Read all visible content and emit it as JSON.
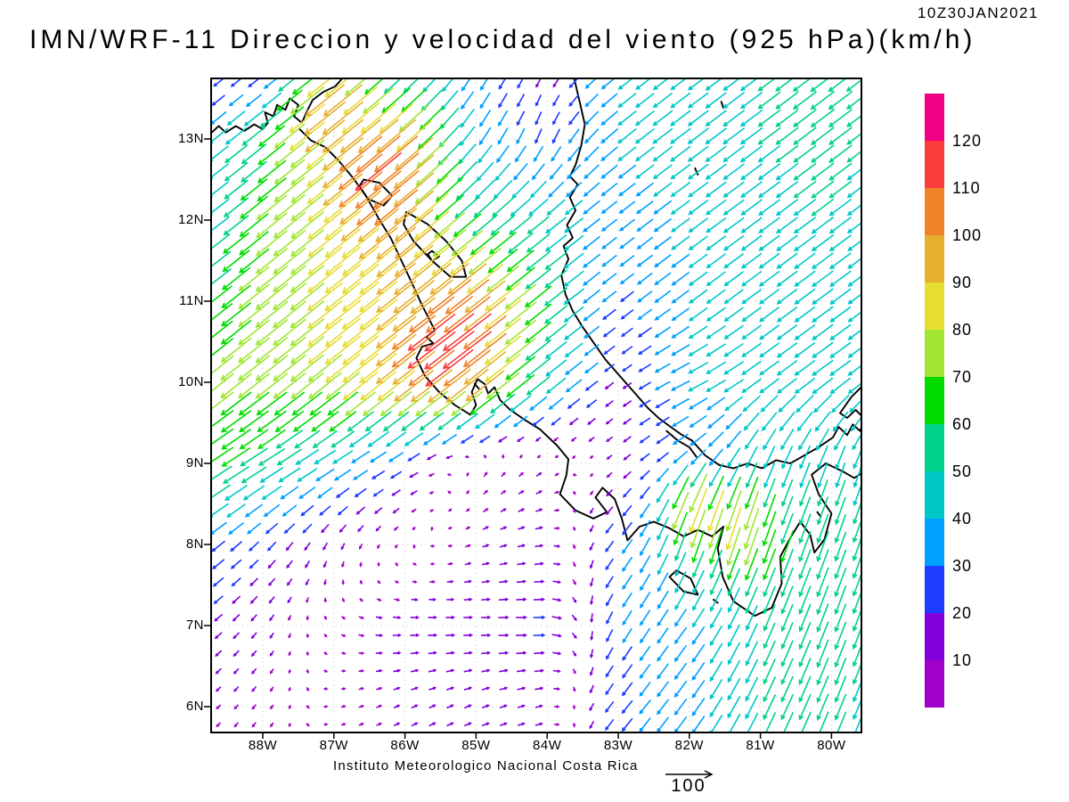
{
  "header": {
    "title": "IMN/WRF-11 Direccion y velocidad del viento (925 hPa)(km/h)",
    "timestamp": "10Z30JAN2021"
  },
  "footer": {
    "credit": "Instituto Meteorologico Nacional Costa Rica",
    "reference_vector_label": "100"
  },
  "axes": {
    "lat_tick_labels": [
      "13N",
      "12N",
      "11N",
      "10N",
      "9N",
      "8N",
      "7N",
      "6N"
    ],
    "lat_tick_values": [
      13,
      12,
      11,
      10,
      9,
      8,
      7,
      6
    ],
    "lon_tick_labels": [
      "88W",
      "87W",
      "86W",
      "85W",
      "84W",
      "83W",
      "82W",
      "81W",
      "80W"
    ],
    "lon_tick_values": [
      -88,
      -87,
      -86,
      -85,
      -84,
      -83,
      -82,
      -81,
      -80
    ]
  },
  "chart_data": {
    "type": "vector_field",
    "title": "IMN/WRF-11 Direccion y velocidad del viento (925 hPa)(km/h)",
    "valid_time": "10Z30JAN2021",
    "units": "km/h",
    "level": "925 hPa",
    "lon_range": [
      -88.73,
      -79.57
    ],
    "lat_range": [
      5.68,
      13.75
    ],
    "grid_on": true,
    "colorbar": {
      "position": "right",
      "labels_top_to_bottom": [
        "120",
        "110",
        "100",
        "90",
        "80",
        "70",
        "60",
        "50",
        "40",
        "30",
        "20",
        "10"
      ],
      "colors_top_to_bottom": [
        "#F00082",
        "#FA3C3C",
        "#F08228",
        "#E6AF2D",
        "#E6DC32",
        "#A0E632",
        "#00DC00",
        "#00D28C",
        "#00C8C8",
        "#00A0FF",
        "#1E3CFF",
        "#8200DC",
        "#A000C8"
      ]
    },
    "reference_vector": {
      "value": 100
    },
    "arrow_spacing_deg": {
      "lon": 0.25,
      "lat": 0.22
    },
    "wind_field_kmh": {
      "lons": [
        -89,
        -88,
        -87,
        -86,
        -85,
        -84,
        -83,
        -82,
        -81,
        -80,
        -79
      ],
      "lats": [
        14,
        13,
        12,
        11,
        10,
        9,
        8,
        7,
        6
      ],
      "u": [
        [
          -8,
          -10,
          -60,
          -30,
          -16,
          -6,
          -30,
          -35,
          -40,
          -45,
          -40
        ],
        [
          -30,
          -45,
          -62,
          -65,
          -22,
          -10,
          -33,
          -37,
          -40,
          -42,
          -38
        ],
        [
          -28,
          -55,
          -62,
          -70,
          -45,
          -38,
          -26,
          -34,
          -38,
          -40,
          -36
        ],
        [
          -45,
          -58,
          -65,
          -72,
          -78,
          -45,
          -22,
          -32,
          -35,
          -38,
          -33
        ],
        [
          -55,
          -58,
          -62,
          -70,
          -75,
          -40,
          -12,
          -36,
          -35,
          -38,
          -35
        ],
        [
          -58,
          -48,
          -35,
          -20,
          4,
          8,
          -10,
          -26,
          -18,
          -16,
          -13
        ],
        [
          -28,
          -16,
          -6,
          -2,
          10,
          14,
          -18,
          -18,
          -22,
          -20,
          -16
        ],
        [
          -15,
          -8,
          5,
          16,
          16,
          22,
          -15,
          -22,
          -20,
          -20,
          -16
        ],
        [
          -7,
          -6,
          6,
          10,
          12,
          12,
          -18,
          -22,
          -22,
          -20,
          -15
        ]
      ],
      "v": [
        [
          -6,
          -8,
          -48,
          -30,
          -28,
          -10,
          -24,
          -26,
          -30,
          -34,
          -30
        ],
        [
          -24,
          -36,
          -50,
          -55,
          -32,
          -26,
          -26,
          -28,
          -30,
          -32,
          -28
        ],
        [
          -20,
          -45,
          -50,
          -58,
          -38,
          -30,
          -20,
          -25,
          -28,
          -30,
          -26
        ],
        [
          -34,
          -47,
          -52,
          -58,
          -62,
          -36,
          -17,
          -24,
          -26,
          -28,
          -25
        ],
        [
          -45,
          -46,
          -50,
          -56,
          -60,
          -32,
          -9,
          -18,
          -25,
          -28,
          -26
        ],
        [
          -38,
          -30,
          -22,
          -12,
          8,
          6,
          -8,
          -20,
          -42,
          -44,
          -40
        ],
        [
          -20,
          -16,
          -12,
          -3,
          4,
          2,
          -22,
          -50,
          -58,
          -55,
          -48
        ],
        [
          -12,
          -10,
          -4,
          0,
          0,
          0,
          -25,
          -30,
          -46,
          -52,
          -44
        ],
        [
          -6,
          -8,
          2,
          5,
          5,
          3,
          -22,
          -30,
          -45,
          -48,
          -40
        ]
      ],
      "hotspots": [
        {
          "lon": -86.35,
          "lat": 12.55,
          "du": -20,
          "dv": -16,
          "r": 0.6
        },
        {
          "lon": -85.4,
          "lat": 10.45,
          "du": -18,
          "dv": -11,
          "r": 0.55
        },
        {
          "lon": -87.15,
          "lat": 13.35,
          "du": -16,
          "dv": -13,
          "r": 0.5
        },
        {
          "lon": -81.95,
          "lat": 8.5,
          "du": -10,
          "dv": -42,
          "r": 0.38
        },
        {
          "lon": -81.3,
          "lat": 8.3,
          "du": -5,
          "dv": -28,
          "r": 0.42
        }
      ]
    }
  }
}
